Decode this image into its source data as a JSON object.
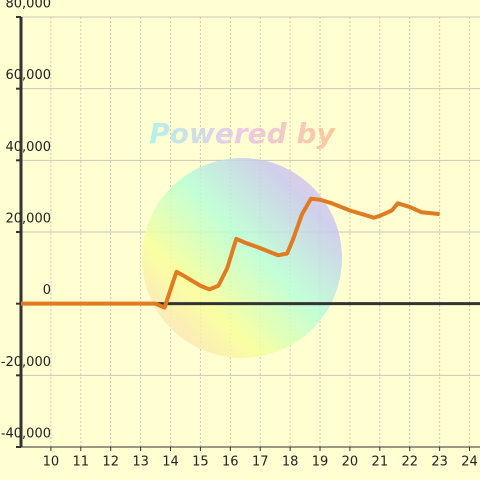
{
  "chart_data": {
    "type": "line",
    "watermark": "Powered by",
    "x": [
      9,
      13.5,
      13.8,
      14.2,
      14.5,
      15,
      15.3,
      15.6,
      15.9,
      16.2,
      16.5,
      17,
      17.3,
      17.6,
      17.9,
      18.1,
      18.4,
      18.7,
      19,
      19.4,
      20,
      20.4,
      20.8,
      21,
      21.4,
      21.6,
      22,
      22.4,
      23
    ],
    "series": [
      {
        "color": "#e07b22",
        "values": [
          0,
          0,
          -1100,
          8900,
          7500,
          5000,
          4000,
          5000,
          10000,
          18100,
          17000,
          15500,
          14500,
          13500,
          14000,
          18000,
          25000,
          29300,
          29000,
          28000,
          26000,
          25000,
          24000,
          24500,
          26000,
          28000,
          27000,
          25500,
          25000
        ]
      }
    ],
    "xlim": [
      9,
      24.35
    ],
    "ylim": [
      -40000,
      80000
    ],
    "xticks": [
      10,
      11,
      12,
      13,
      14,
      15,
      16,
      17,
      18,
      19,
      20,
      21,
      22,
      23,
      24
    ],
    "yticks": [
      {
        "value": -40000,
        "label": "-40,000"
      },
      {
        "value": -20000,
        "label": "-20,000"
      },
      0,
      {
        "value": 20000,
        "label": "20,000"
      },
      {
        "value": 40000,
        "label": "40,000"
      },
      {
        "value": 60000,
        "label": "60,000"
      },
      {
        "value": 80000,
        "label": "80,000"
      }
    ],
    "grid": true
  }
}
